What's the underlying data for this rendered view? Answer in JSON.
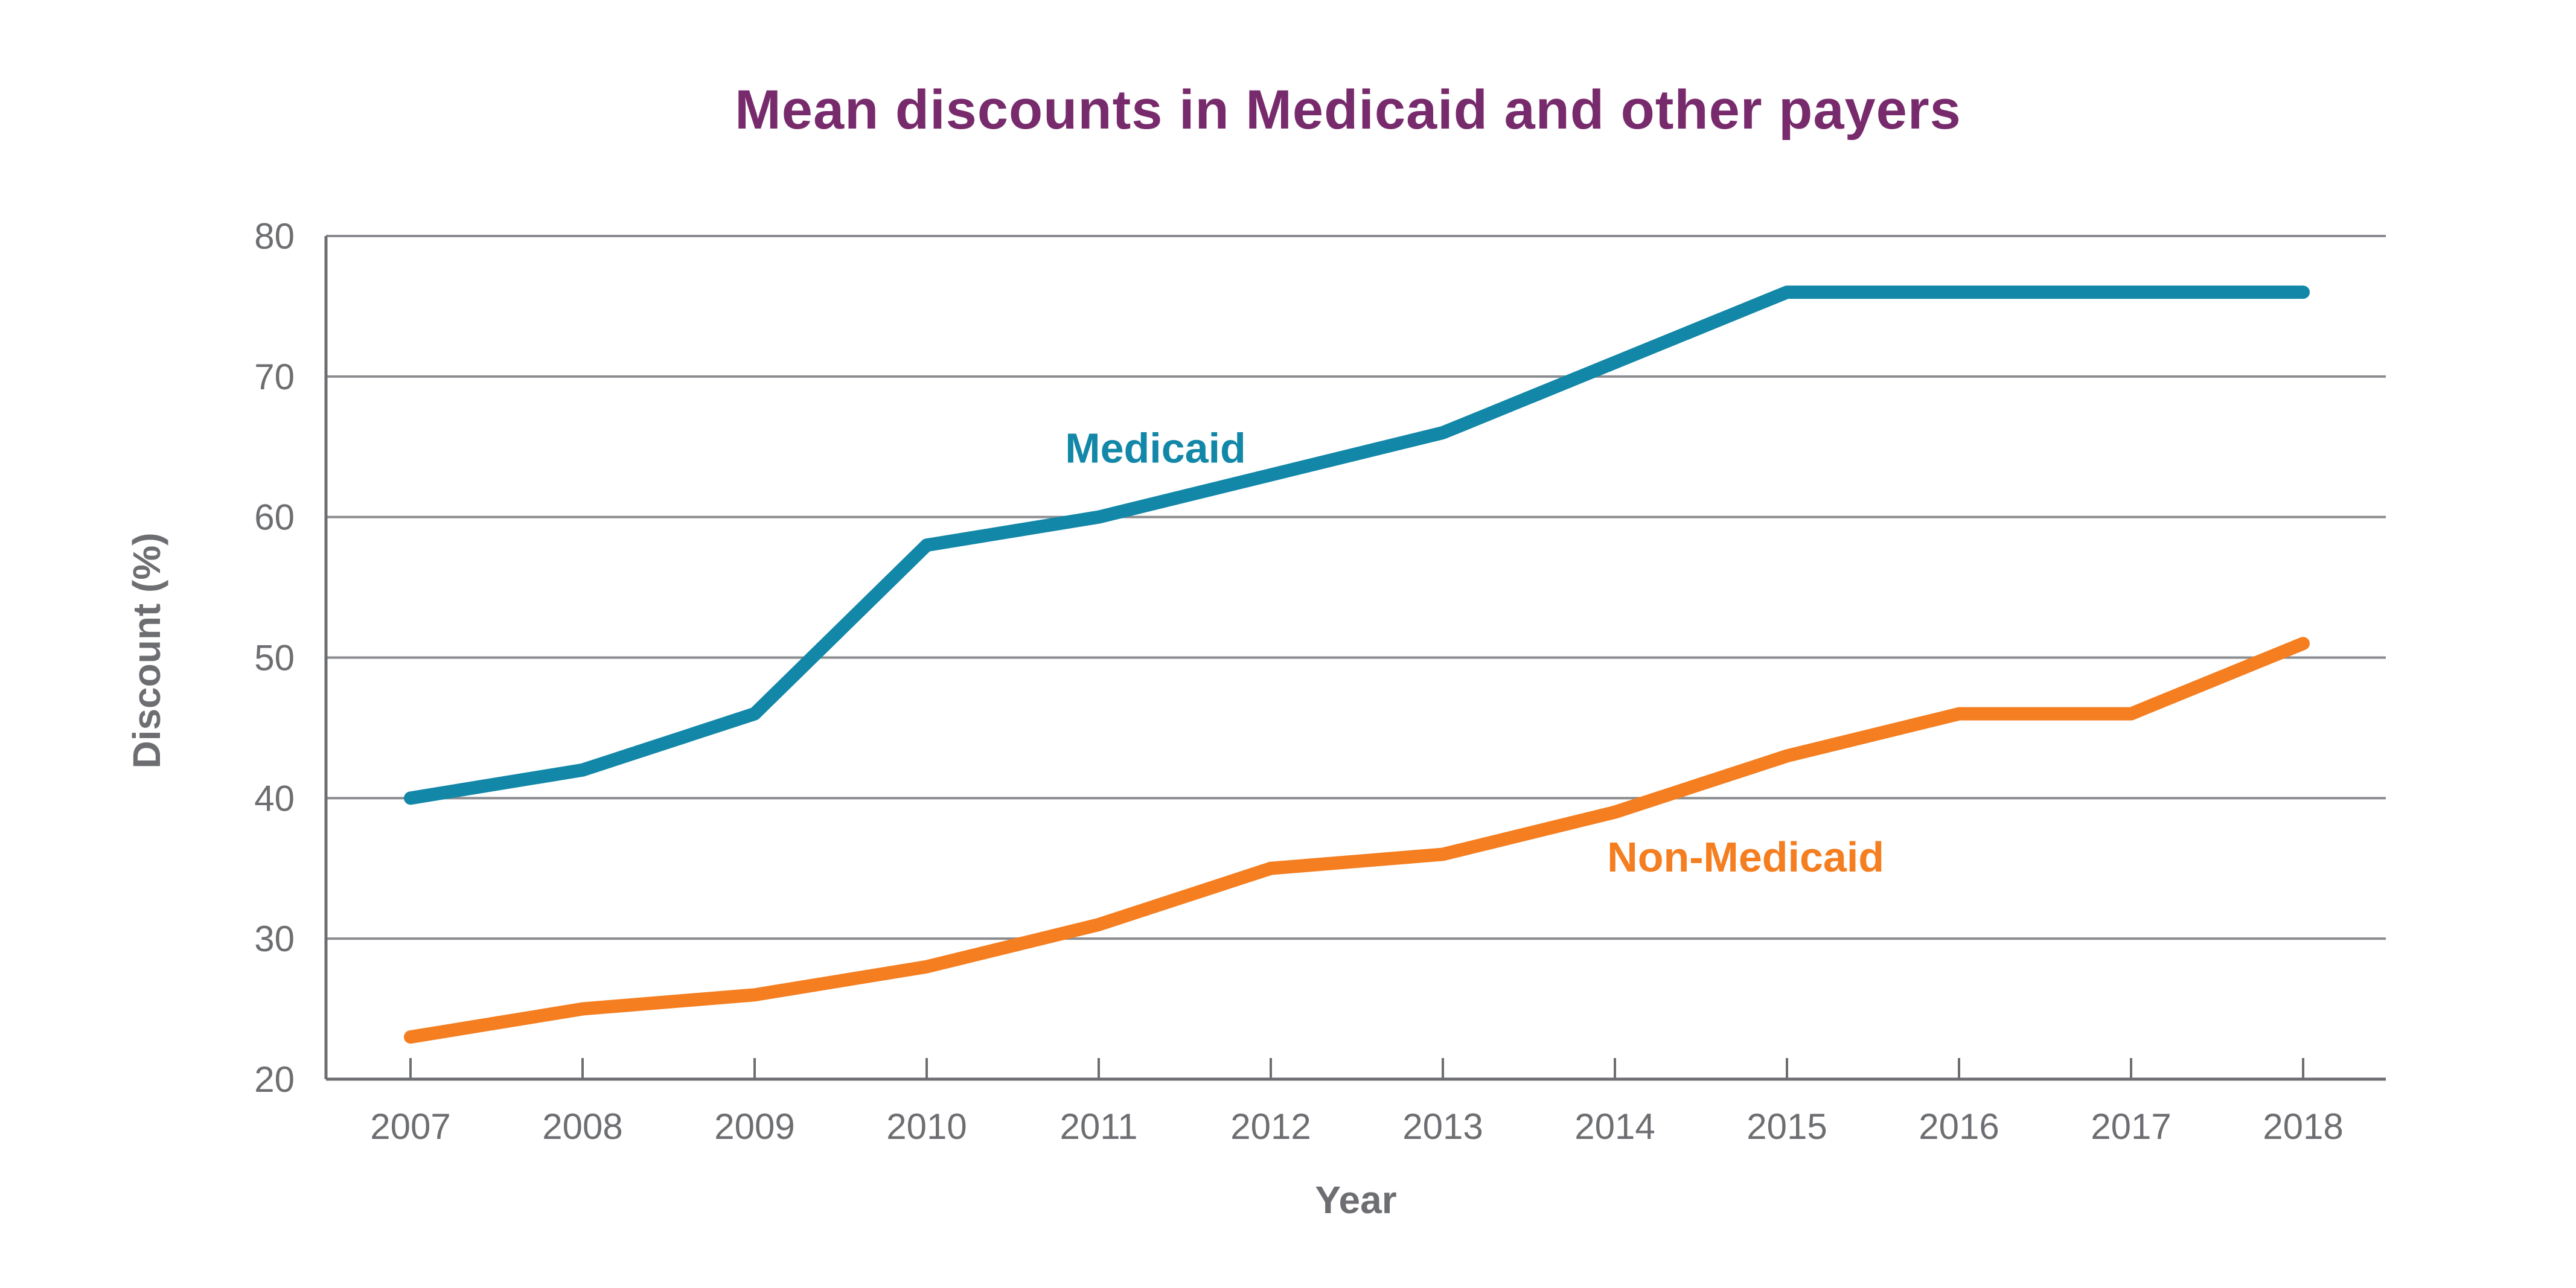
{
  "title": "Mean discounts in Medicaid and other payers",
  "colors": {
    "background": "#FFFFFF",
    "title_text": "#782B6C",
    "axis_text": "#6D6E71",
    "axis_line": "#6D6E71",
    "gridline": "#8A8C8F",
    "medicaid": "#1287A8",
    "non_medicaid": "#F47E20"
  },
  "chart_data": {
    "type": "line",
    "title": "Mean discounts in Medicaid and other payers",
    "xlabel": "Year",
    "ylabel": "Discount (%)",
    "x": [
      2007,
      2008,
      2009,
      2010,
      2011,
      2012,
      2013,
      2014,
      2015,
      2016,
      2017,
      2018
    ],
    "ylim": [
      20,
      80
    ],
    "y_ticks": [
      20,
      30,
      40,
      50,
      60,
      70,
      80
    ],
    "grid": "horizontal gridlines at every 10 units",
    "legend": "inline labels next to lines",
    "series": [
      {
        "name": "Medicaid",
        "color": "#1287A8",
        "values": [
          40,
          42,
          46,
          58,
          60,
          63,
          66,
          71,
          76,
          76,
          76,
          76
        ],
        "label_anchor": {
          "x": 2011.33,
          "y": 64.9
        }
      },
      {
        "name": "Non-Medicaid",
        "color": "#F47E20",
        "values": [
          23,
          25,
          26,
          28,
          31,
          35,
          36,
          39,
          43,
          46,
          46,
          51
        ],
        "label_anchor": {
          "x": 2014.76,
          "y": 35.8
        }
      }
    ]
  }
}
